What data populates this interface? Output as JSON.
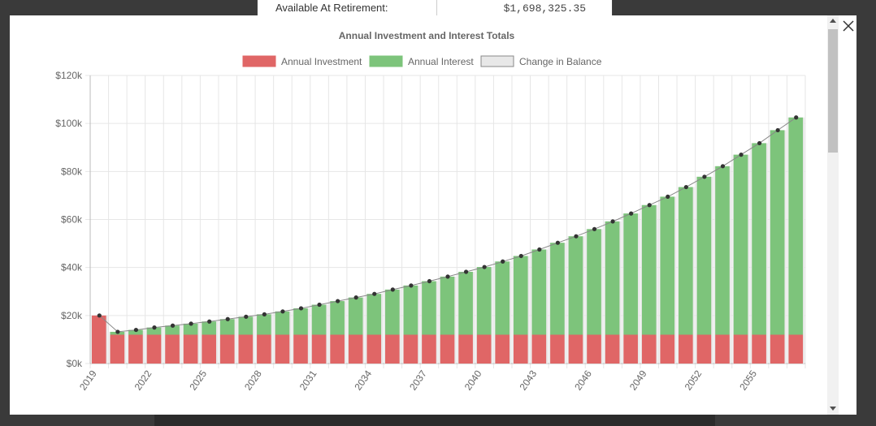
{
  "background": {
    "label": "Available At Retirement:",
    "value": "$1,698,325.35"
  },
  "modal": {
    "close_icon": "close-icon"
  },
  "colors": {
    "investment": "#e06666",
    "interest": "#7dc47b",
    "balance_fill": "#e8e8e8",
    "balance_stroke": "#888888"
  },
  "chart_data": {
    "type": "bar",
    "title": "Annual Investment and Interest Totals",
    "legend": [
      "Annual Investment",
      "Annual Interest",
      "Change in Balance"
    ],
    "legend_position": "top",
    "grid": true,
    "ylim": [
      0,
      120000
    ],
    "y_ticks": [
      "$0k",
      "$20k",
      "$40k",
      "$60k",
      "$80k",
      "$100k",
      "$120k"
    ],
    "x_tick_labels": [
      "2019",
      "2022",
      "2025",
      "2028",
      "2031",
      "2034",
      "2037",
      "2040",
      "2043",
      "2046",
      "2049",
      "2052",
      "2055"
    ],
    "categories": [
      "2019",
      "2020",
      "2021",
      "2022",
      "2023",
      "2024",
      "2025",
      "2026",
      "2027",
      "2028",
      "2029",
      "2030",
      "2031",
      "2032",
      "2033",
      "2034",
      "2035",
      "2036",
      "2037",
      "2038",
      "2039",
      "2040",
      "2041",
      "2042",
      "2043",
      "2044",
      "2045",
      "2046",
      "2047",
      "2048",
      "2049",
      "2050",
      "2051",
      "2052",
      "2053",
      "2054",
      "2055",
      "2056",
      "2057"
    ],
    "series": [
      {
        "name": "Annual Investment",
        "stack": "main",
        "values": [
          20000,
          12000,
          12000,
          12000,
          12000,
          12000,
          12000,
          12000,
          12000,
          12000,
          12000,
          12000,
          12000,
          12000,
          12000,
          12000,
          12000,
          12000,
          12000,
          12000,
          12000,
          12000,
          12000,
          12000,
          12000,
          12000,
          12000,
          12000,
          12000,
          12000,
          12000,
          12000,
          12000,
          12000,
          12000,
          12000,
          12000,
          12000,
          12000
        ]
      },
      {
        "name": "Annual Interest",
        "stack": "main",
        "values": [
          0,
          1200,
          2000,
          3000,
          3800,
          4600,
          5500,
          6500,
          7500,
          8500,
          9700,
          11000,
          12500,
          14000,
          15500,
          17000,
          18800,
          20500,
          22300,
          24200,
          26200,
          28200,
          30500,
          32800,
          35500,
          38300,
          41000,
          44000,
          47200,
          50500,
          54000,
          57500,
          61500,
          65800,
          70200,
          75000,
          79800,
          85200,
          90500
        ]
      },
      {
        "name": "Change in Balance",
        "type": "line",
        "values": [
          20000,
          13200,
          14000,
          15000,
          15800,
          16600,
          17500,
          18500,
          19500,
          20500,
          21700,
          23000,
          24500,
          26000,
          27500,
          29000,
          30800,
          32500,
          34300,
          36200,
          38200,
          40200,
          42500,
          44800,
          47500,
          50300,
          53000,
          56000,
          59200,
          62500,
          66000,
          69500,
          73500,
          77800,
          82200,
          87000,
          91800,
          97200,
          102500
        ]
      }
    ]
  }
}
